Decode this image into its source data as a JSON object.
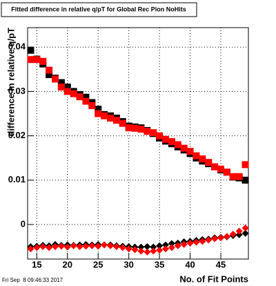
{
  "chart_data": {
    "type": "scatter",
    "title": "Fitted difference in relative q/pT for Global Rec Pion NoHits",
    "x_label": "No. of Fit Points",
    "y_label": "difference in relative q/pT",
    "date": "Fri Sep  8 09:46:33 2017",
    "x": [
      14,
      15,
      16,
      17,
      18,
      19,
      20,
      21,
      22,
      23,
      24,
      25,
      26,
      27,
      28,
      29,
      30,
      31,
      32,
      33,
      34,
      35,
      36,
      37,
      38,
      39,
      40,
      41,
      42,
      43,
      44,
      45,
      46,
      47,
      48,
      49
    ],
    "series": [
      {
        "color": "#000000",
        "marker": "square",
        "values": [
          0.0393,
          0.0373,
          0.0362,
          0.0338,
          0.033,
          0.032,
          0.031,
          0.03,
          0.0293,
          0.0287,
          0.0275,
          0.026,
          0.0248,
          0.0245,
          0.024,
          0.0232,
          0.0222,
          0.022,
          0.0218,
          0.0212,
          0.0205,
          0.0195,
          0.0188,
          0.0182,
          0.0175,
          0.0168,
          0.016,
          0.015,
          0.0143,
          0.0137,
          0.013,
          0.0123,
          0.0118,
          0.0107,
          0.0105,
          0.01
        ]
      },
      {
        "color": "#ff0000",
        "marker": "square",
        "values": [
          0.0372,
          0.0372,
          0.0368,
          0.0348,
          0.0328,
          0.031,
          0.03,
          0.0295,
          0.0288,
          0.0278,
          0.0268,
          0.025,
          0.0245,
          0.024,
          0.0235,
          0.0228,
          0.0218,
          0.0217,
          0.0215,
          0.021,
          0.0207,
          0.02,
          0.0192,
          0.0187,
          0.018,
          0.0172,
          0.0165,
          0.0155,
          0.0148,
          0.014,
          0.013,
          0.0125,
          0.0118,
          0.0108,
          0.0108,
          0.0135
        ]
      },
      {
        "color": "#000000",
        "marker": "diamond",
        "values": [
          -0.005,
          -0.0049,
          -0.0047,
          -0.0048,
          -0.0045,
          -0.0047,
          -0.0046,
          -0.0047,
          -0.0046,
          -0.0045,
          -0.0046,
          -0.0045,
          -0.0046,
          -0.0046,
          -0.0048,
          -0.0049,
          -0.005,
          -0.0051,
          -0.0051,
          -0.005,
          -0.0051,
          -0.0048,
          -0.0046,
          -0.0043,
          -0.0042,
          -0.0039,
          -0.0038,
          -0.0036,
          -0.0034,
          -0.0033,
          -0.003,
          -0.0029,
          -0.0028,
          -0.0025,
          -0.0023,
          -0.002
        ]
      },
      {
        "color": "#ff0000",
        "marker": "diamond",
        "values": [
          -0.0055,
          -0.0052,
          -0.005,
          -0.0052,
          -0.005,
          -0.0049,
          -0.0051,
          -0.0048,
          -0.005,
          -0.0049,
          -0.0048,
          -0.0049,
          -0.0046,
          -0.0048,
          -0.005,
          -0.0052,
          -0.0055,
          -0.0057,
          -0.006,
          -0.0062,
          -0.006,
          -0.0058,
          -0.0055,
          -0.0052,
          -0.0048,
          -0.0045,
          -0.0042,
          -0.004,
          -0.0038,
          -0.0035,
          -0.0032,
          -0.003,
          -0.0027,
          -0.0022,
          -0.0015,
          -0.0008
        ]
      }
    ],
    "xlim": [
      13.5,
      49.5
    ],
    "xticks": [
      15,
      20,
      25,
      30,
      35,
      40,
      45
    ],
    "ylim": [
      -0.0078,
      0.0444
    ],
    "yticks": [
      0,
      0.01,
      0.02,
      0.03,
      0.04
    ],
    "grid": true
  }
}
